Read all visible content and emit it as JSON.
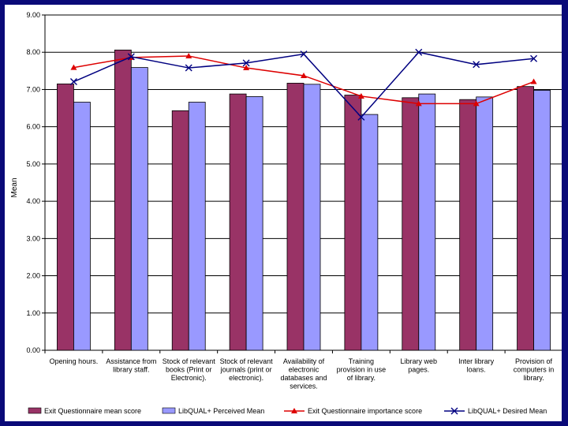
{
  "chart_data": {
    "type": "bar",
    "ylabel": "Mean",
    "ylim": [
      0,
      9
    ],
    "ytick_labels": [
      "0.00",
      "1.00",
      "2.00",
      "3.00",
      "4.00",
      "5.00",
      "6.00",
      "7.00",
      "8.00",
      "9.00"
    ],
    "categories": [
      [
        "Opening hours."
      ],
      [
        "Assistance from",
        "library staff."
      ],
      [
        "Stock of relevant",
        "books (Print or",
        "Electronic)."
      ],
      [
        "Stock of relevant",
        "journals (print or",
        "electronic)."
      ],
      [
        "Availability of",
        "electronic",
        "databases and",
        "services."
      ],
      [
        "Training",
        "provision in use",
        "of library."
      ],
      [
        "Library web",
        "pages."
      ],
      [
        "Inter library",
        "loans."
      ],
      [
        "Provision of",
        "computers in",
        "library."
      ]
    ],
    "series": [
      {
        "name": "Exit Questionnaire mean score",
        "kind": "bar",
        "color": "#993366",
        "values": [
          7.15,
          8.06,
          6.43,
          6.88,
          7.17,
          6.85,
          6.78,
          6.73,
          7.08
        ]
      },
      {
        "name": "LibQUAL+ Perceived Mean",
        "kind": "bar",
        "color": "#9999ff",
        "values": [
          6.66,
          7.59,
          6.66,
          6.81,
          7.14,
          6.33,
          6.88,
          6.8,
          6.98
        ]
      },
      {
        "name": "Exit Questionnaire importance score",
        "kind": "line",
        "color": "#dd0000",
        "marker": "triangle",
        "values": [
          7.59,
          7.86,
          7.9,
          7.58,
          7.37,
          6.82,
          6.62,
          6.62,
          7.21
        ]
      },
      {
        "name": "LibQUAL+ Desired Mean",
        "kind": "line",
        "color": "#000080",
        "marker": "x",
        "values": [
          7.21,
          7.88,
          7.58,
          7.71,
          7.95,
          6.26,
          8.0,
          7.67,
          7.83
        ]
      }
    ],
    "grid": true,
    "legend_position": "bottom"
  }
}
